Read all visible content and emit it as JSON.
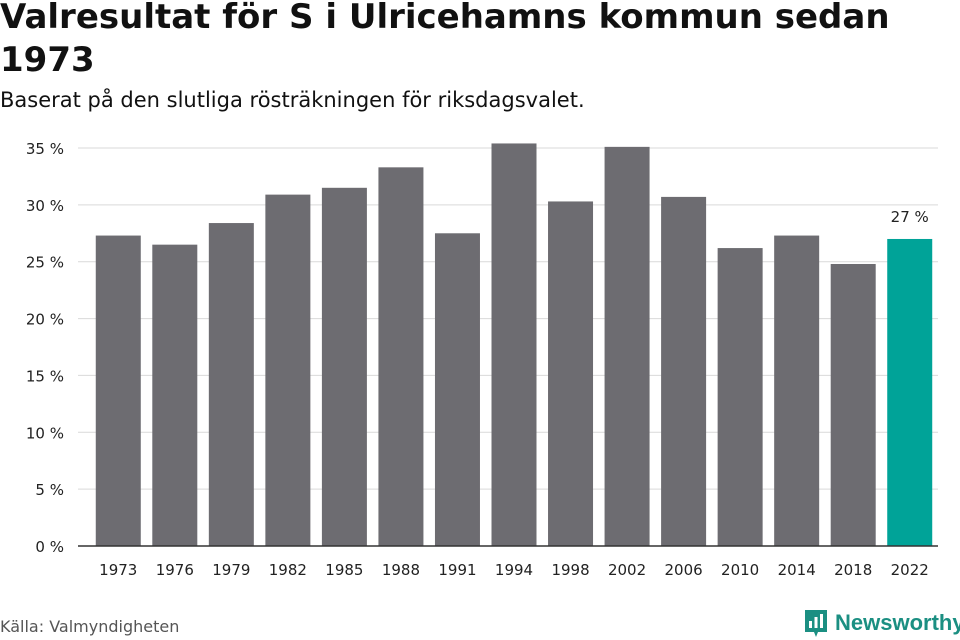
{
  "header": {
    "title": "Valresultat för S i Ulricehamns kommun sedan 1973",
    "subtitle": "Baserat på den slutliga rösträkningen för riksdagsvalet."
  },
  "footer": {
    "source": "Källa: Valmyndigheten",
    "brand": "Newsworthy",
    "brand_icon": "newsworthy-logo-icon"
  },
  "colors": {
    "bar": "#6d6c71",
    "highlight": "#00a398",
    "grid": "#d9d9d9",
    "axis": "#333333",
    "text": "#222222",
    "brand": "#1b8f82"
  },
  "chart_data": {
    "type": "bar",
    "title": "Valresultat för S i Ulricehamns kommun sedan 1973",
    "xlabel": "",
    "ylabel": "",
    "categories": [
      "1973",
      "1976",
      "1979",
      "1982",
      "1985",
      "1988",
      "1991",
      "1994",
      "1998",
      "2002",
      "2006",
      "2010",
      "2014",
      "2018",
      "2022"
    ],
    "values": [
      27.3,
      26.5,
      28.4,
      30.9,
      31.5,
      33.3,
      27.5,
      35.4,
      30.3,
      35.1,
      30.7,
      26.2,
      27.3,
      24.8,
      27.0
    ],
    "highlight_index": 14,
    "data_labels": [
      {
        "index": 14,
        "text": "27 %"
      }
    ],
    "y_ticks": [
      {
        "value": 0,
        "label": "0 %"
      },
      {
        "value": 5,
        "label": "5 %"
      },
      {
        "value": 10,
        "label": "10 %"
      },
      {
        "value": 15,
        "label": "15 %"
      },
      {
        "value": 20,
        "label": "20 %"
      },
      {
        "value": 25,
        "label": "25 %"
      },
      {
        "value": 30,
        "label": "30 %"
      },
      {
        "value": 35,
        "label": "35 %"
      }
    ],
    "ylim": [
      0,
      35
    ],
    "grid": true,
    "legend": "none"
  }
}
